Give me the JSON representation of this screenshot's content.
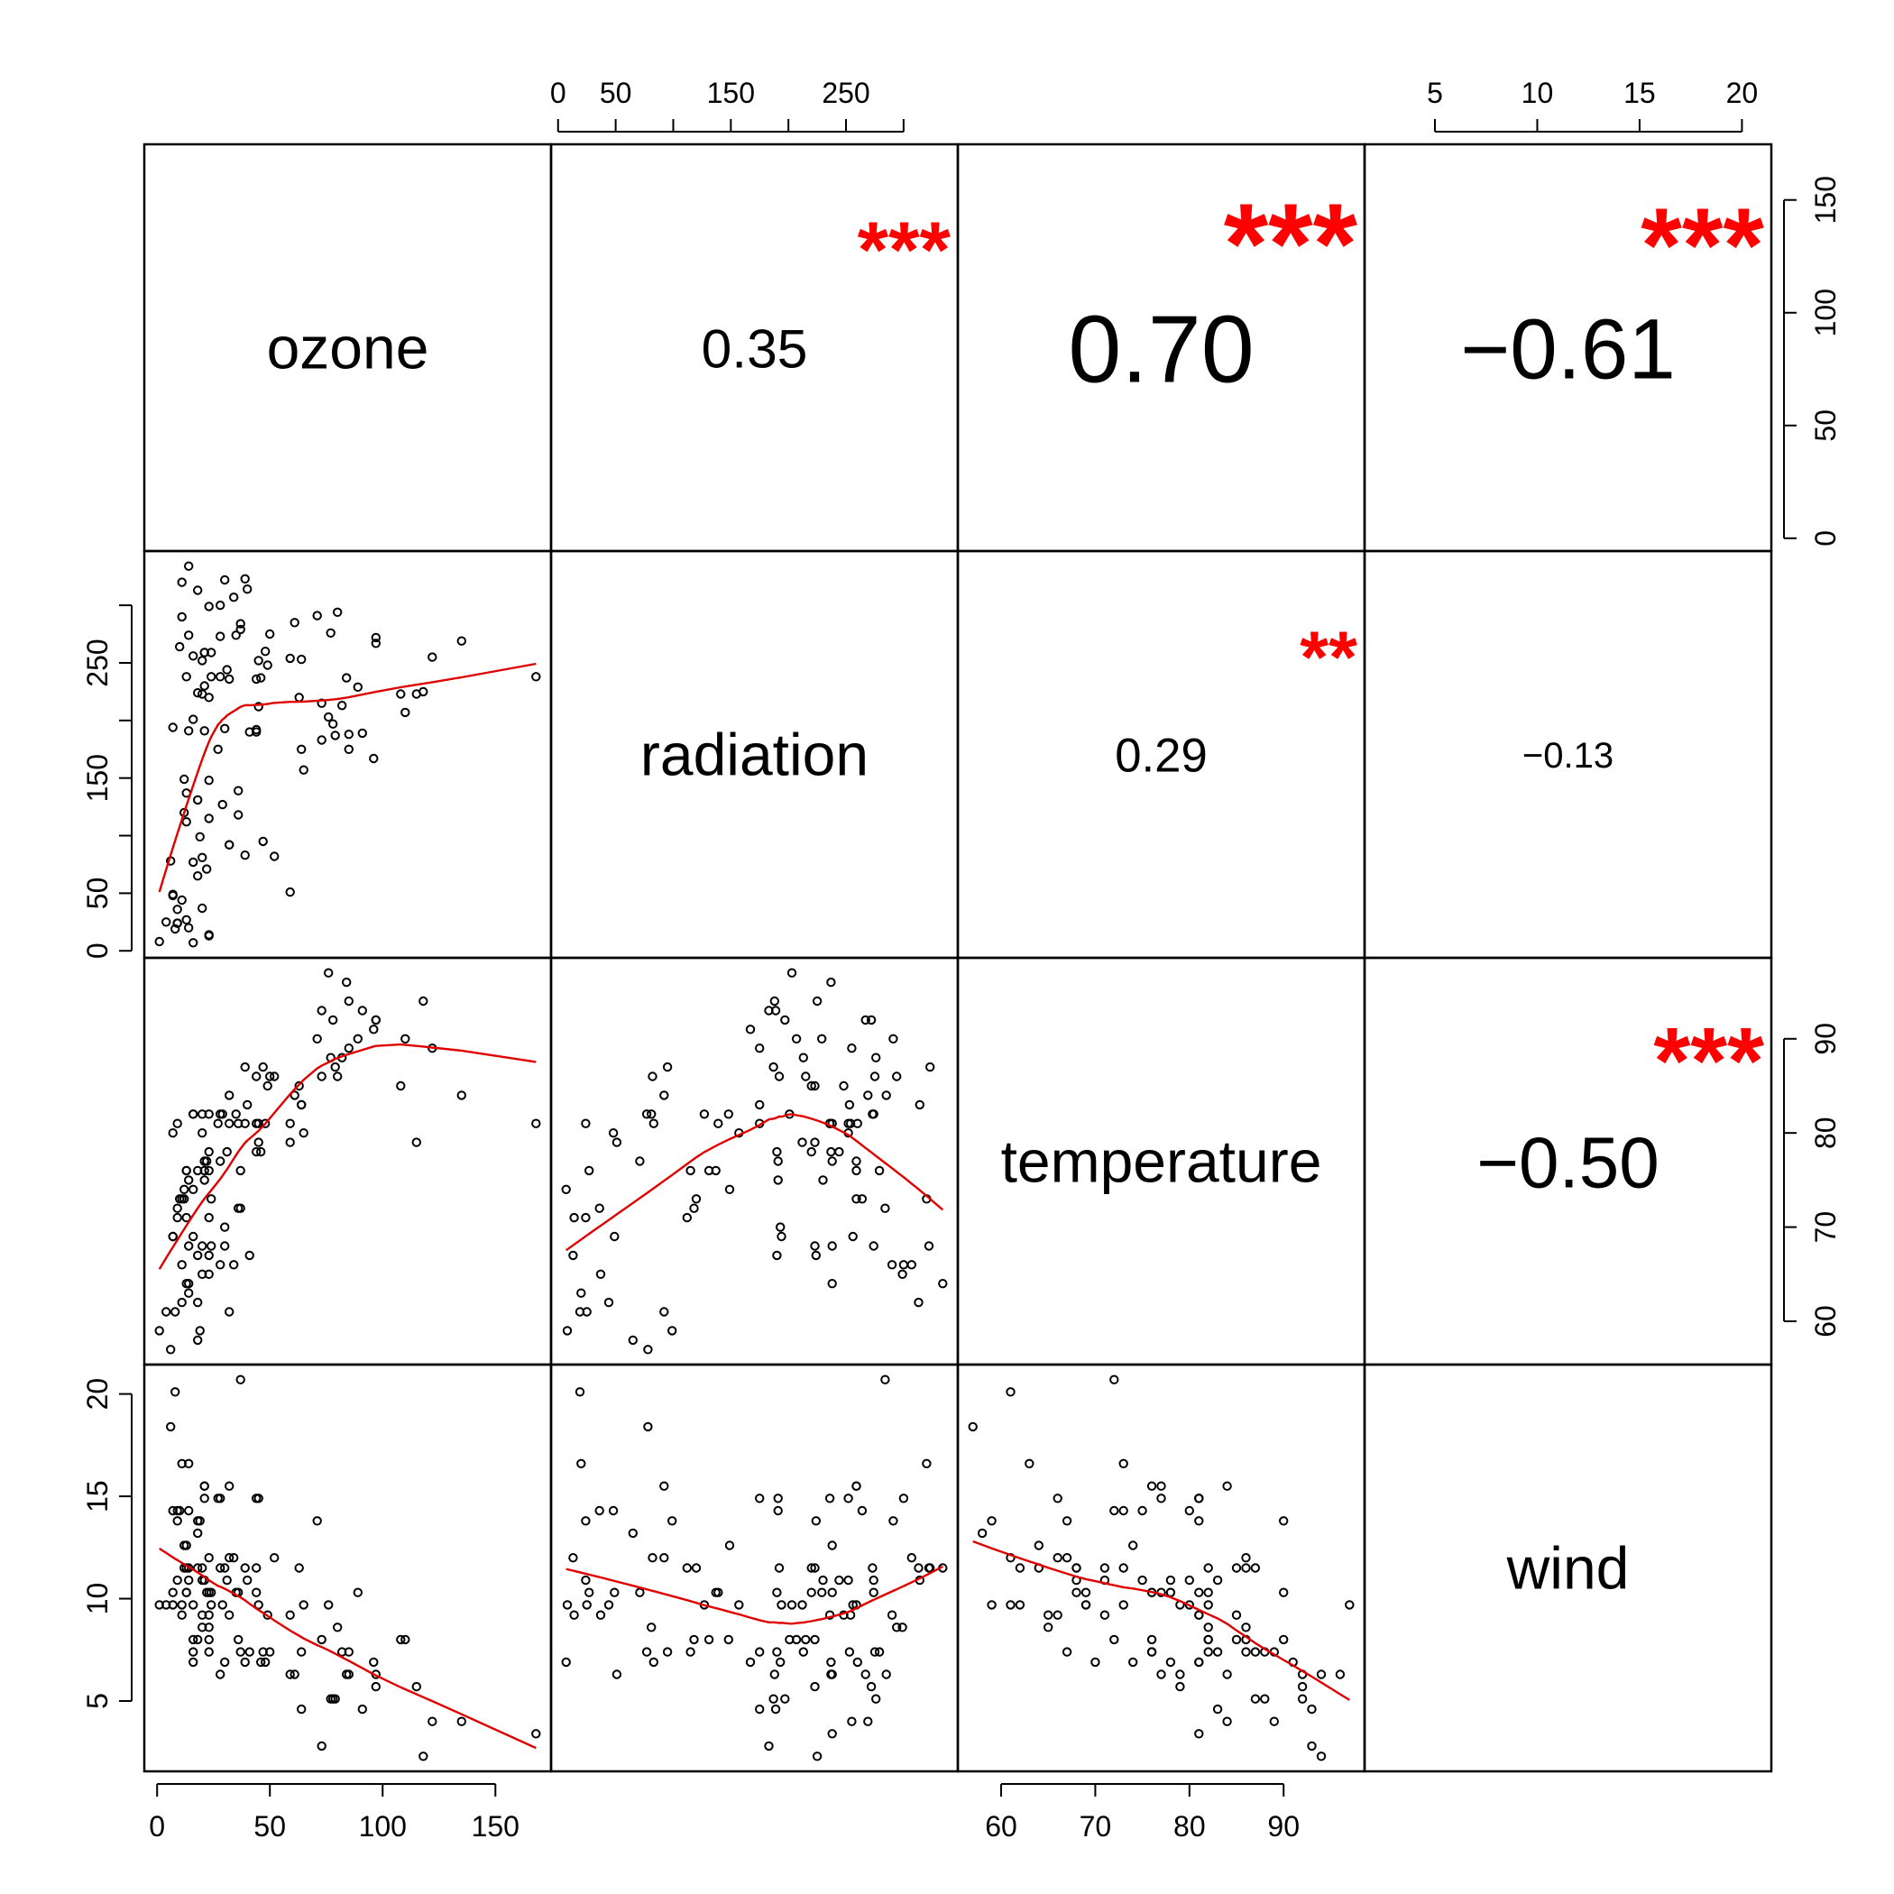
{
  "chart_data": {
    "type": "scatter",
    "variables": [
      "ozone",
      "radiation",
      "temperature",
      "wind"
    ],
    "ranges": {
      "ozone": [
        1,
        168
      ],
      "radiation": [
        7,
        334
      ],
      "temperature": [
        57,
        97
      ],
      "wind": [
        2.3,
        20.7
      ]
    },
    "axis_ticks": {
      "ozone": [
        0,
        50,
        100,
        150
      ],
      "radiation": [
        0,
        50,
        100,
        150,
        200,
        250,
        300
      ],
      "radiation_labels": [
        "0",
        "50",
        "",
        "150",
        "",
        "250",
        ""
      ],
      "temperature": [
        60,
        70,
        80,
        90
      ],
      "wind": [
        5,
        10,
        15,
        20
      ]
    },
    "correlations": [
      {
        "row": 0,
        "col": 1,
        "pair": [
          "ozone",
          "radiation"
        ],
        "r": "0.35",
        "stars": "***"
      },
      {
        "row": 0,
        "col": 2,
        "pair": [
          "ozone",
          "temperature"
        ],
        "r": "0.70",
        "stars": "***"
      },
      {
        "row": 0,
        "col": 3,
        "pair": [
          "ozone",
          "wind"
        ],
        "r": "−0.61",
        "stars": "***"
      },
      {
        "row": 1,
        "col": 2,
        "pair": [
          "radiation",
          "temperature"
        ],
        "r": "0.29",
        "stars": "**"
      },
      {
        "row": 1,
        "col": 3,
        "pair": [
          "radiation",
          "wind"
        ],
        "r": "−0.13",
        "stars": ""
      },
      {
        "row": 2,
        "col": 3,
        "pair": [
          "temperature",
          "wind"
        ],
        "r": "−0.50",
        "stars": "***"
      }
    ],
    "smooth_color": "#e00000",
    "stars_color": "#ff0000",
    "point_color": "#000000",
    "observations": [
      [
        41,
        190,
        67,
        7.4
      ],
      [
        36,
        118,
        72,
        8.0
      ],
      [
        12,
        149,
        74,
        12.6
      ],
      [
        18,
        313,
        62,
        11.5
      ],
      [
        28,
        300,
        66,
        14.9
      ],
      [
        23,
        299,
        65,
        8.6
      ],
      [
        19,
        99,
        59,
        13.8
      ],
      [
        8,
        19,
        61,
        20.1
      ],
      [
        7,
        194,
        69,
        9.7
      ],
      [
        16,
        256,
        69,
        9.7
      ],
      [
        11,
        290,
        66,
        9.2
      ],
      [
        14,
        274,
        68,
        10.9
      ],
      [
        18,
        65,
        58,
        13.2
      ],
      [
        14,
        334,
        64,
        11.5
      ],
      [
        34,
        307,
        66,
        12.0
      ],
      [
        6,
        78,
        57,
        18.4
      ],
      [
        30,
        322,
        68,
        11.5
      ],
      [
        11,
        44,
        62,
        9.7
      ],
      [
        1,
        8,
        59,
        9.7
      ],
      [
        11,
        320,
        73,
        16.6
      ],
      [
        4,
        25,
        61,
        9.7
      ],
      [
        32,
        92,
        61,
        12.0
      ],
      [
        23,
        13,
        67,
        12.0
      ],
      [
        45,
        252,
        81,
        14.9
      ],
      [
        115,
        223,
        79,
        5.7
      ],
      [
        37,
        279,
        76,
        7.4
      ],
      [
        29,
        127,
        82,
        9.7
      ],
      [
        71,
        291,
        90,
        13.8
      ],
      [
        39,
        323,
        87,
        11.5
      ],
      [
        23,
        148,
        82,
        8.0
      ],
      [
        21,
        191,
        77,
        14.9
      ],
      [
        37,
        284,
        72,
        20.7
      ],
      [
        20,
        37,
        65,
        9.2
      ],
      [
        12,
        120,
        73,
        11.5
      ],
      [
        13,
        137,
        76,
        10.3
      ],
      [
        135,
        269,
        84,
        4.0
      ],
      [
        49,
        248,
        85,
        9.2
      ],
      [
        32,
        236,
        81,
        9.2
      ],
      [
        64,
        175,
        83,
        4.6
      ],
      [
        40,
        314,
        83,
        10.9
      ],
      [
        77,
        276,
        88,
        5.1
      ],
      [
        97,
        267,
        92,
        6.3
      ],
      [
        97,
        272,
        92,
        5.7
      ],
      [
        85,
        175,
        89,
        7.4
      ],
      [
        10,
        264,
        73,
        14.3
      ],
      [
        27,
        175,
        81,
        14.9
      ],
      [
        7,
        48,
        80,
        14.3
      ],
      [
        48,
        260,
        81,
        6.9
      ],
      [
        35,
        274,
        82,
        10.3
      ],
      [
        61,
        285,
        84,
        6.3
      ],
      [
        79,
        187,
        87,
        5.1
      ],
      [
        63,
        220,
        85,
        11.5
      ],
      [
        16,
        7,
        74,
        6.9
      ],
      [
        80,
        294,
        86,
        8.6
      ],
      [
        108,
        223,
        85,
        8.0
      ],
      [
        20,
        81,
        82,
        8.6
      ],
      [
        52,
        82,
        86,
        12.0
      ],
      [
        82,
        213,
        88,
        7.4
      ],
      [
        50,
        275,
        86,
        7.4
      ],
      [
        64,
        253,
        83,
        7.4
      ],
      [
        59,
        254,
        81,
        9.2
      ],
      [
        39,
        83,
        81,
        6.9
      ],
      [
        9,
        24,
        81,
        13.8
      ],
      [
        16,
        77,
        82,
        7.4
      ],
      [
        122,
        255,
        89,
        4.0
      ],
      [
        89,
        229,
        90,
        10.3
      ],
      [
        110,
        207,
        90,
        8.0
      ],
      [
        44,
        192,
        86,
        11.5
      ],
      [
        28,
        273,
        82,
        11.5
      ],
      [
        65,
        157,
        80,
        9.7
      ],
      [
        22,
        71,
        77,
        10.3
      ],
      [
        59,
        51,
        79,
        6.3
      ],
      [
        23,
        115,
        76,
        7.4
      ],
      [
        31,
        244,
        78,
        10.9
      ],
      [
        44,
        190,
        78,
        10.3
      ],
      [
        21,
        259,
        77,
        15.5
      ],
      [
        9,
        36,
        72,
        14.3
      ],
      [
        45,
        212,
        79,
        9.7
      ],
      [
        168,
        238,
        81,
        3.4
      ],
      [
        73,
        215,
        86,
        8.0
      ],
      [
        76,
        203,
        97,
        9.7
      ],
      [
        118,
        225,
        94,
        2.3
      ],
      [
        84,
        237,
        96,
        6.3
      ],
      [
        85,
        188,
        94,
        6.3
      ],
      [
        96,
        167,
        91,
        6.9
      ],
      [
        78,
        197,
        92,
        5.1
      ],
      [
        73,
        183,
        93,
        2.8
      ],
      [
        91,
        189,
        93,
        4.6
      ],
      [
        47,
        95,
        87,
        7.4
      ],
      [
        32,
        92,
        84,
        15.5
      ],
      [
        20,
        252,
        80,
        10.9
      ],
      [
        23,
        220,
        78,
        10.3
      ],
      [
        21,
        230,
        75,
        10.9
      ],
      [
        24,
        259,
        73,
        9.7
      ],
      [
        44,
        236,
        81,
        14.9
      ],
      [
        21,
        259,
        76,
        15.5
      ],
      [
        28,
        238,
        77,
        6.3
      ],
      [
        9,
        24,
        71,
        10.9
      ],
      [
        13,
        112,
        71,
        11.5
      ],
      [
        46,
        237,
        78,
        6.9
      ],
      [
        18,
        224,
        67,
        13.8
      ],
      [
        13,
        27,
        76,
        10.3
      ],
      [
        24,
        238,
        68,
        10.3
      ],
      [
        16,
        201,
        82,
        8.0
      ],
      [
        13,
        238,
        64,
        12.6
      ],
      [
        23,
        14,
        71,
        9.2
      ],
      [
        36,
        139,
        81,
        10.3
      ],
      [
        7,
        49,
        69,
        10.3
      ],
      [
        14,
        20,
        63,
        16.6
      ],
      [
        30,
        193,
        70,
        6.9
      ],
      [
        14,
        191,
        75,
        14.3
      ],
      [
        18,
        131,
        76,
        8.0
      ],
      [
        20,
        223,
        68,
        11.5
      ]
    ]
  }
}
